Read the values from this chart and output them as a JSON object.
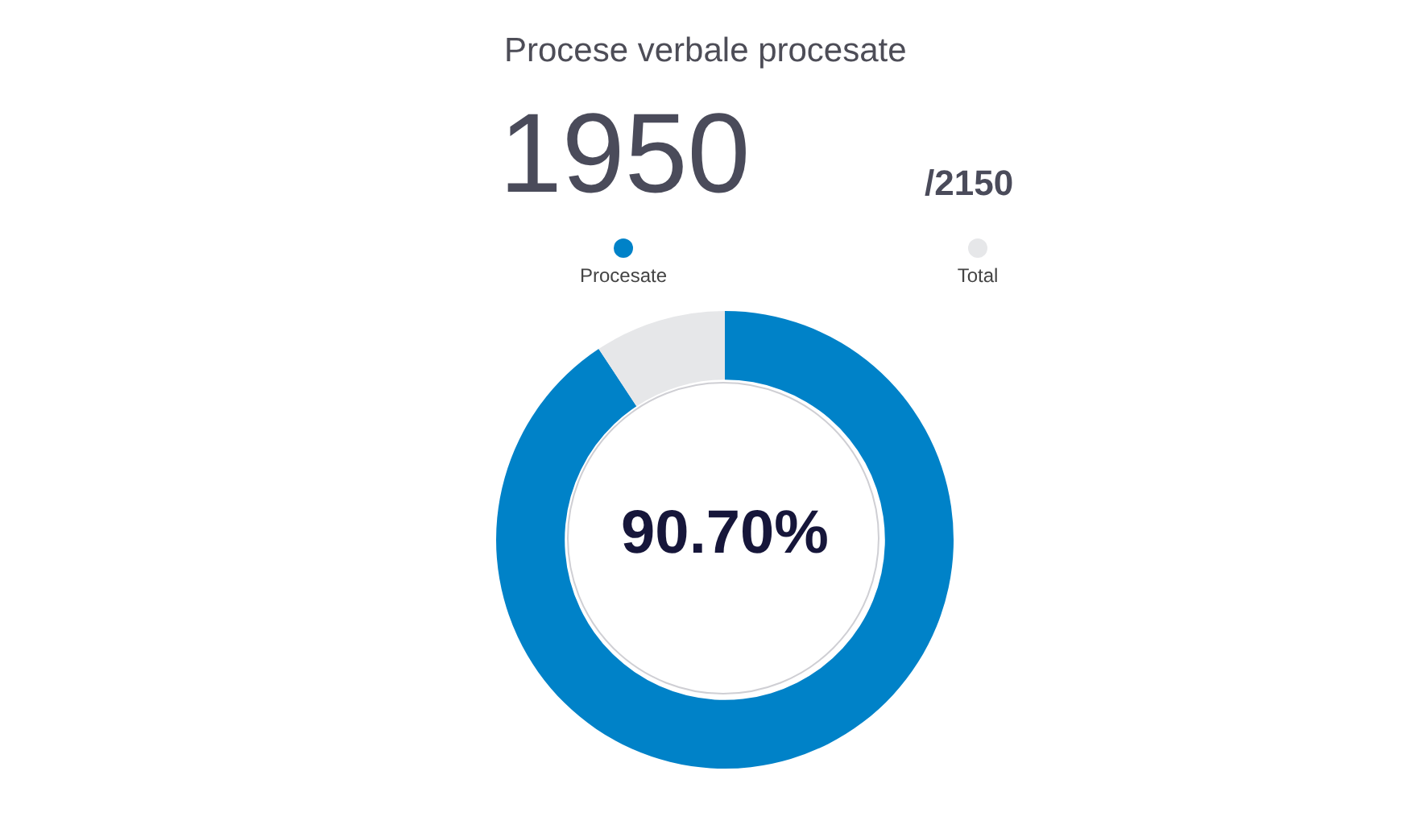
{
  "chart_data": {
    "type": "donut",
    "title": "Procese verbale procesate",
    "categories": [
      "Procesate",
      "Total"
    ],
    "values": [
      90.7,
      9.3
    ],
    "colors": [
      "#0082c8",
      "#e6e7e9"
    ],
    "legend": "top",
    "annotations": [
      "1950",
      "/2150",
      "90.70%"
    ]
  }
}
